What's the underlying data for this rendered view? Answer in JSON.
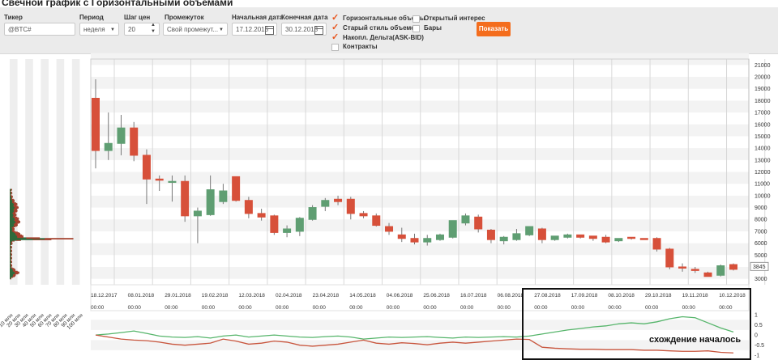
{
  "page_title": "Свечной график с Горизонтальными объемами",
  "toolbar": {
    "ticker_label": "Тикер",
    "ticker_value": "@BTC#",
    "period_label": "Период",
    "period_value": "неделя",
    "step_label": "Шаг цен",
    "step_value": "20",
    "interval_label": "Промежуток",
    "interval_value": "Свой промежут...",
    "start_label": "Начальная дата",
    "start_value": "17.12.2015",
    "end_label": "Конечная дата",
    "end_value": "30.12.2018",
    "checkboxes": [
      {
        "label": "Горизонтальные объемы",
        "checked": true
      },
      {
        "label": "Старый стиль объемов",
        "checked": true
      },
      {
        "label": "Накопл. Дельта(ASK-BID)",
        "checked": true
      },
      {
        "label": "Контракты",
        "checked": false
      },
      {
        "label": "Открытый интерес",
        "checked": false
      },
      {
        "label": "Бары",
        "checked": false
      }
    ],
    "show_button": "Показать"
  },
  "annotation": "схождение началось",
  "colors": {
    "up": "#5f9e72",
    "down": "#d7503a",
    "delta1": "#56b56b",
    "delta2": "#c8553d",
    "button": "#f46d1d"
  },
  "chart_data": [
    {
      "type": "candlestick",
      "y_ticks": [
        3000,
        4000,
        5000,
        6000,
        7000,
        8000,
        9000,
        10000,
        11000,
        12000,
        13000,
        14000,
        15000,
        16000,
        17000,
        18000,
        19000,
        20000,
        21000
      ],
      "ylim": [
        2500,
        21500
      ],
      "last_price_label": "3845",
      "date_labels": [
        "18.12.2017",
        "08.01.2018",
        "29.01.2018",
        "19.02.2018",
        "12.03.2018",
        "02.04.2018",
        "23.04.2018",
        "14.05.2018",
        "04.06.2018",
        "25.06.2018",
        "16.07.2018",
        "06.08.2018",
        "27.08.2018",
        "17.09.2018",
        "08.10.2018",
        "29.10.2018",
        "19.11.2018",
        "10.12.2018"
      ],
      "time_label": "00:00",
      "candles": [
        [
          18.2,
          19.8,
          12.3,
          13.8
        ],
        [
          13.8,
          17.0,
          13.0,
          14.4
        ],
        [
          14.4,
          16.8,
          13.4,
          15.7
        ],
        [
          15.7,
          16.2,
          12.9,
          13.4
        ],
        [
          13.4,
          13.9,
          9.3,
          11.4
        ],
        [
          11.4,
          11.7,
          10.4,
          11.3
        ],
        [
          11.2,
          11.7,
          9.5,
          11.2
        ],
        [
          11.2,
          11.7,
          7.8,
          8.3
        ],
        [
          8.3,
          9.0,
          6.0,
          8.7
        ],
        [
          8.4,
          11.7,
          8.3,
          10.5
        ],
        [
          9.5,
          11.0,
          9.3,
          10.4
        ],
        [
          11.6,
          11.6,
          9.5,
          9.6
        ],
        [
          9.6,
          9.9,
          8.1,
          8.5
        ],
        [
          8.5,
          8.9,
          7.9,
          8.2
        ],
        [
          8.3,
          8.4,
          6.7,
          6.9
        ],
        [
          6.9,
          7.5,
          6.5,
          7.2
        ],
        [
          7.0,
          8.2,
          6.6,
          8.1
        ],
        [
          8.0,
          9.2,
          7.9,
          9.0
        ],
        [
          9.1,
          9.8,
          8.7,
          9.6
        ],
        [
          9.7,
          10.0,
          9.2,
          9.5
        ],
        [
          9.7,
          9.9,
          8.0,
          8.5
        ],
        [
          8.5,
          8.7,
          8.1,
          8.3
        ],
        [
          8.3,
          8.5,
          7.4,
          7.5
        ],
        [
          7.4,
          7.7,
          6.7,
          7.0
        ],
        [
          6.7,
          7.3,
          6.1,
          6.4
        ],
        [
          6.4,
          6.8,
          5.9,
          6.1
        ],
        [
          6.1,
          6.7,
          5.8,
          6.4
        ],
        [
          6.3,
          6.8,
          6.2,
          6.7
        ],
        [
          6.5,
          7.8,
          6.4,
          7.9
        ],
        [
          7.7,
          8.5,
          7.5,
          8.3
        ],
        [
          8.2,
          8.4,
          6.9,
          7.2
        ],
        [
          7.1,
          7.2,
          6.0,
          6.3
        ],
        [
          6.2,
          6.6,
          5.9,
          6.5
        ],
        [
          6.3,
          7.2,
          6.2,
          6.8
        ],
        [
          6.7,
          7.3,
          6.6,
          7.4
        ],
        [
          7.2,
          7.3,
          6.0,
          6.3
        ],
        [
          6.3,
          6.6,
          6.2,
          6.6
        ],
        [
          6.5,
          6.8,
          6.4,
          6.7
        ],
        [
          6.7,
          6.7,
          6.4,
          6.5
        ],
        [
          6.6,
          6.6,
          6.2,
          6.4
        ],
        [
          6.5,
          6.7,
          6.0,
          6.1
        ],
        [
          6.2,
          6.4,
          6.1,
          6.4
        ],
        [
          6.5,
          6.5,
          6.3,
          6.4
        ],
        [
          6.4,
          6.4,
          6.3,
          6.3
        ],
        [
          6.4,
          6.5,
          5.3,
          5.5
        ],
        [
          5.5,
          5.6,
          3.8,
          4.0
        ],
        [
          4.0,
          4.3,
          3.6,
          3.9
        ],
        [
          3.8,
          4.0,
          3.5,
          3.7
        ],
        [
          3.5,
          3.6,
          3.2,
          3.2
        ],
        [
          3.3,
          4.2,
          3.2,
          4.1
        ],
        [
          4.2,
          4.3,
          3.7,
          3.8
        ]
      ]
    },
    {
      "type": "line",
      "y_ticks": [
        1,
        0.5,
        0,
        -0.5,
        -1
      ],
      "ylim": [
        -1.15,
        1.2
      ],
      "series": [
        {
          "values": [
            0.0,
            0.05,
            0.12,
            0.2,
            0.08,
            -0.05,
            -0.1,
            -0.12,
            -0.08,
            -0.15,
            -0.05,
            0.0,
            -0.1,
            -0.05,
            0.0,
            -0.05,
            -0.1,
            -0.12,
            -0.08,
            -0.05,
            -0.1,
            -0.2,
            -0.15,
            -0.1,
            -0.12,
            -0.1,
            -0.08,
            -0.12,
            -0.15,
            -0.1,
            -0.12,
            -0.1,
            -0.08,
            -0.1,
            -0.05,
            0.05,
            0.15,
            0.25,
            0.32,
            0.4,
            0.45,
            0.55,
            0.6,
            0.55,
            0.65,
            0.8,
            0.9,
            0.85,
            0.6,
            0.35,
            0.15
          ]
        },
        {
          "values": [
            0.0,
            -0.1,
            -0.2,
            -0.25,
            -0.28,
            -0.35,
            -0.45,
            -0.5,
            -0.45,
            -0.4,
            -0.2,
            -0.3,
            -0.45,
            -0.4,
            -0.3,
            -0.35,
            -0.5,
            -0.55,
            -0.5,
            -0.45,
            -0.35,
            -0.25,
            -0.4,
            -0.45,
            -0.38,
            -0.42,
            -0.48,
            -0.4,
            -0.35,
            -0.4,
            -0.35,
            -0.3,
            -0.25,
            -0.2,
            -0.22,
            -0.6,
            -0.65,
            -0.68,
            -0.7,
            -0.7,
            -0.72,
            -0.72,
            -0.72,
            -0.75,
            -0.75,
            -0.78,
            -0.8,
            -0.8,
            -0.78,
            -0.85,
            -0.88
          ]
        }
      ]
    },
    {
      "type": "bar",
      "orientation": "horizontal",
      "x_ticks": [
        "10 млн",
        "20 млн",
        "30 млн",
        "40 млн",
        "50 млн",
        "60 млн",
        "70 млн",
        "80 млн",
        "90 млн",
        "100 млн"
      ],
      "ylim": [
        2500,
        21500
      ]
    }
  ]
}
